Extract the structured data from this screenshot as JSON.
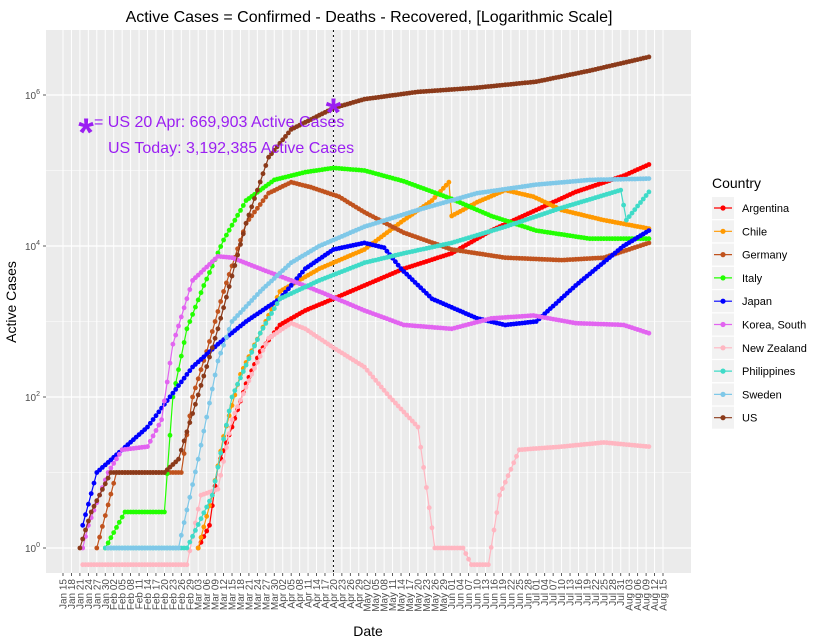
{
  "chart_data": {
    "type": "line",
    "title": "Active Cases = Confirmed - Deaths - Recovered, [Logarithmic Scale]",
    "xlabel": "Date",
    "ylabel": "Active Cases",
    "yscale": "log10",
    "ylim": [
      0.6,
      6000000
    ],
    "xlim": [
      "2020-01-15",
      "2020-08-15"
    ],
    "grid": true,
    "legend_title": "Country",
    "legend_position": "right",
    "x_ticks": [
      "Jan 15",
      "Jan 18",
      "Jan 21",
      "Jan 24",
      "Jan 27",
      "Jan 30",
      "Feb 02",
      "Feb 05",
      "Feb 08",
      "Feb 11",
      "Feb 14",
      "Feb 17",
      "Feb 20",
      "Feb 23",
      "Feb 26",
      "Feb 29",
      "Mar 03",
      "Mar 06",
      "Mar 09",
      "Mar 12",
      "Mar 15",
      "Mar 18",
      "Mar 21",
      "Mar 24",
      "Mar 27",
      "Mar 30",
      "Apr 02",
      "Apr 05",
      "Apr 08",
      "Apr 11",
      "Apr 14",
      "Apr 17",
      "Apr 20",
      "Apr 23",
      "Apr 26",
      "Apr 29",
      "May 02",
      "May 05",
      "May 08",
      "May 11",
      "May 14",
      "May 17",
      "May 20",
      "May 23",
      "May 26",
      "May 29",
      "Jun 01",
      "Jun 04",
      "Jun 07",
      "Jun 10",
      "Jun 13",
      "Jun 16",
      "Jun 19",
      "Jun 22",
      "Jun 25",
      "Jun 28",
      "Jul 01",
      "Jul 04",
      "Jul 07",
      "Jul 10",
      "Jul 13",
      "Jul 16",
      "Jul 19",
      "Jul 22",
      "Jul 25",
      "Jul 28",
      "Jul 31",
      "Aug 03",
      "Aug 06",
      "Aug 09",
      "Aug 12",
      "Aug 15"
    ],
    "y_ticks": [
      {
        "value": 1,
        "base": "10",
        "exp": "0"
      },
      {
        "value": 100,
        "base": "10",
        "exp": "2"
      },
      {
        "value": 10000,
        "base": "10",
        "exp": "4"
      },
      {
        "value": 1000000,
        "base": "10",
        "exp": "6"
      }
    ],
    "reference_line": {
      "date": "2020-04-20",
      "style": "dotted"
    },
    "annotation": {
      "marker": "*",
      "marker_color": "#9b1ff2",
      "marker_point": {
        "date": "2020-04-20",
        "value": 669903
      },
      "line1": "= US 20 Apr: 669,903 Active Cases",
      "line2": "US Today: 3,192,385 Active Cases"
    },
    "series": [
      {
        "name": "Argentina",
        "color": "#ff0000",
        "points": [
          [
            "2020-03-03",
            1
          ],
          [
            "2020-03-07",
            2
          ],
          [
            "2020-03-10",
            12
          ],
          [
            "2020-03-15",
            40
          ],
          [
            "2020-03-20",
            150
          ],
          [
            "2020-03-25",
            400
          ],
          [
            "2020-04-01",
            900
          ],
          [
            "2020-04-10",
            1400
          ],
          [
            "2020-04-20",
            2000
          ],
          [
            "2020-05-01",
            3000
          ],
          [
            "2020-05-15",
            5000
          ],
          [
            "2020-06-01",
            8000
          ],
          [
            "2020-06-15",
            16000
          ],
          [
            "2020-07-01",
            30000
          ],
          [
            "2020-07-15",
            52000
          ],
          [
            "2020-08-01",
            85000
          ],
          [
            "2020-08-10",
            120000
          ]
        ]
      },
      {
        "name": "Chile",
        "color": "#ff9900",
        "points": [
          [
            "2020-03-03",
            1
          ],
          [
            "2020-03-08",
            5
          ],
          [
            "2020-03-12",
            30
          ],
          [
            "2020-03-18",
            200
          ],
          [
            "2020-03-25",
            700
          ],
          [
            "2020-04-01",
            2500
          ],
          [
            "2020-04-15",
            5000
          ],
          [
            "2020-05-01",
            9000
          ],
          [
            "2020-05-15",
            22000
          ],
          [
            "2020-05-25",
            40000
          ],
          [
            "2020-05-31",
            70000
          ],
          [
            "2020-06-01",
            25000
          ],
          [
            "2020-06-10",
            38000
          ],
          [
            "2020-06-20",
            55000
          ],
          [
            "2020-06-30",
            45000
          ],
          [
            "2020-07-10",
            30000
          ],
          [
            "2020-07-25",
            22000
          ],
          [
            "2020-08-10",
            17000
          ]
        ]
      },
      {
        "name": "Germany",
        "color": "#c0531e",
        "points": [
          [
            "2020-01-27",
            1
          ],
          [
            "2020-02-03",
            10
          ],
          [
            "2020-02-20",
            10
          ],
          [
            "2020-02-26",
            10
          ],
          [
            "2020-03-01",
            100
          ],
          [
            "2020-03-06",
            400
          ],
          [
            "2020-03-12",
            2500
          ],
          [
            "2020-03-20",
            20000
          ],
          [
            "2020-03-28",
            50000
          ],
          [
            "2020-04-05",
            70000
          ],
          [
            "2020-04-12",
            60000
          ],
          [
            "2020-04-22",
            45000
          ],
          [
            "2020-05-01",
            28000
          ],
          [
            "2020-05-15",
            15000
          ],
          [
            "2020-06-01",
            9000
          ],
          [
            "2020-06-20",
            7000
          ],
          [
            "2020-07-10",
            6500
          ],
          [
            "2020-07-25",
            7000
          ],
          [
            "2020-08-10",
            11000
          ]
        ]
      },
      {
        "name": "Italy",
        "color": "#22ff00",
        "points": [
          [
            "2020-01-30",
            1
          ],
          [
            "2020-02-06",
            3
          ],
          [
            "2020-02-20",
            3
          ],
          [
            "2020-02-23",
            100
          ],
          [
            "2020-02-28",
            800
          ],
          [
            "2020-03-05",
            3000
          ],
          [
            "2020-03-12",
            12000
          ],
          [
            "2020-03-20",
            40000
          ],
          [
            "2020-03-30",
            75000
          ],
          [
            "2020-04-10",
            95000
          ],
          [
            "2020-04-20",
            108000
          ],
          [
            "2020-05-01",
            100000
          ],
          [
            "2020-05-15",
            72000
          ],
          [
            "2020-06-01",
            42000
          ],
          [
            "2020-06-15",
            25000
          ],
          [
            "2020-07-01",
            16000
          ],
          [
            "2020-07-20",
            12500
          ],
          [
            "2020-08-10",
            12500
          ]
        ]
      },
      {
        "name": "Japan",
        "color": "#0000ff",
        "points": [
          [
            "2020-01-22",
            2
          ],
          [
            "2020-01-27",
            10
          ],
          [
            "2020-02-05",
            20
          ],
          [
            "2020-02-14",
            40
          ],
          [
            "2020-02-20",
            80
          ],
          [
            "2020-03-01",
            250
          ],
          [
            "2020-03-10",
            500
          ],
          [
            "2020-03-20",
            1000
          ],
          [
            "2020-04-01",
            2000
          ],
          [
            "2020-04-10",
            5000
          ],
          [
            "2020-04-20",
            9000
          ],
          [
            "2020-05-01",
            11000
          ],
          [
            "2020-05-08",
            9500
          ],
          [
            "2020-05-14",
            5000
          ],
          [
            "2020-05-25",
            2000
          ],
          [
            "2020-06-10",
            1100
          ],
          [
            "2020-06-20",
            900
          ],
          [
            "2020-07-01",
            1000
          ],
          [
            "2020-07-15",
            3000
          ],
          [
            "2020-08-01",
            10000
          ],
          [
            "2020-08-10",
            16000
          ]
        ]
      },
      {
        "name": "Korea, South",
        "color": "#e264f0",
        "points": [
          [
            "2020-01-22",
            1
          ],
          [
            "2020-01-24",
            2
          ],
          [
            "2020-01-31",
            10
          ],
          [
            "2020-02-05",
            20
          ],
          [
            "2020-02-14",
            22
          ],
          [
            "2020-02-19",
            50
          ],
          [
            "2020-02-23",
            500
          ],
          [
            "2020-03-01",
            3500
          ],
          [
            "2020-03-10",
            7300
          ],
          [
            "2020-03-15",
            7000
          ],
          [
            "2020-03-25",
            5000
          ],
          [
            "2020-04-05",
            3500
          ],
          [
            "2020-04-15",
            2500
          ],
          [
            "2020-05-01",
            1400
          ],
          [
            "2020-05-15",
            900
          ],
          [
            "2020-06-01",
            800
          ],
          [
            "2020-06-15",
            1100
          ],
          [
            "2020-06-30",
            1200
          ],
          [
            "2020-07-15",
            950
          ],
          [
            "2020-08-01",
            900
          ],
          [
            "2020-08-10",
            700
          ]
        ]
      },
      {
        "name": "New Zealand",
        "color": "#ffb6c1",
        "points": [
          [
            "2020-01-22",
            0.6
          ],
          [
            "2020-02-28",
            0.6
          ],
          [
            "2020-03-04",
            5
          ],
          [
            "2020-03-10",
            6
          ],
          [
            "2020-03-15",
            50
          ],
          [
            "2020-03-22",
            200
          ],
          [
            "2020-03-28",
            600
          ],
          [
            "2020-04-05",
            950
          ],
          [
            "2020-04-10",
            800
          ],
          [
            "2020-04-20",
            450
          ],
          [
            "2020-05-01",
            250
          ],
          [
            "2020-05-10",
            100
          ],
          [
            "2020-05-20",
            40
          ],
          [
            "2020-05-26",
            1
          ],
          [
            "2020-06-05",
            1
          ],
          [
            "2020-06-08",
            0.6
          ],
          [
            "2020-06-14",
            0.6
          ],
          [
            "2020-06-18",
            5
          ],
          [
            "2020-06-25",
            20
          ],
          [
            "2020-07-10",
            22
          ],
          [
            "2020-07-25",
            25
          ],
          [
            "2020-08-10",
            22
          ]
        ]
      },
      {
        "name": "Philippines",
        "color": "#3fdbc8",
        "points": [
          [
            "2020-01-30",
            1
          ],
          [
            "2020-02-28",
            1
          ],
          [
            "2020-03-08",
            5
          ],
          [
            "2020-03-15",
            100
          ],
          [
            "2020-03-25",
            700
          ],
          [
            "2020-04-01",
            2000
          ],
          [
            "2020-04-15",
            3500
          ],
          [
            "2020-05-01",
            6000
          ],
          [
            "2020-05-15",
            8000
          ],
          [
            "2020-06-01",
            11000
          ],
          [
            "2020-06-20",
            18000
          ],
          [
            "2020-07-10",
            32000
          ],
          [
            "2020-07-31",
            55000
          ],
          [
            "2020-08-02",
            22000
          ],
          [
            "2020-08-10",
            52000
          ]
        ]
      },
      {
        "name": "Sweden",
        "color": "#7fc8e8",
        "points": [
          [
            "2020-01-31",
            1
          ],
          [
            "2020-02-25",
            1
          ],
          [
            "2020-03-03",
            15
          ],
          [
            "2020-03-10",
            300
          ],
          [
            "2020-03-15",
            1000
          ],
          [
            "2020-03-25",
            2500
          ],
          [
            "2020-04-05",
            6000
          ],
          [
            "2020-04-15",
            10000
          ],
          [
            "2020-05-01",
            18000
          ],
          [
            "2020-05-20",
            30000
          ],
          [
            "2020-06-10",
            50000
          ],
          [
            "2020-07-01",
            65000
          ],
          [
            "2020-07-20",
            75000
          ],
          [
            "2020-08-10",
            78000
          ]
        ]
      },
      {
        "name": "US",
        "color": "#8b3a1a",
        "points": [
          [
            "2020-01-21",
            1
          ],
          [
            "2020-01-25",
            3
          ],
          [
            "2020-02-01",
            10
          ],
          [
            "2020-02-20",
            10
          ],
          [
            "2020-02-25",
            15
          ],
          [
            "2020-03-02",
            80
          ],
          [
            "2020-03-10",
            800
          ],
          [
            "2020-03-20",
            20000
          ],
          [
            "2020-03-28",
            150000
          ],
          [
            "2020-04-05",
            350000
          ],
          [
            "2020-04-20",
            669903
          ],
          [
            "2020-05-01",
            880000
          ],
          [
            "2020-05-20",
            1100000
          ],
          [
            "2020-06-10",
            1250000
          ],
          [
            "2020-07-01",
            1500000
          ],
          [
            "2020-07-20",
            2100000
          ],
          [
            "2020-08-10",
            3192385
          ]
        ]
      }
    ]
  }
}
